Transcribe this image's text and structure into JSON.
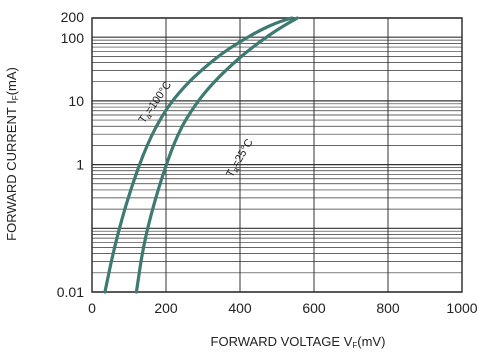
{
  "chart_data": {
    "type": "line",
    "title": "",
    "xlabel_main": "FORWARD VOLTAGE  V",
    "xlabel_sub": "F",
    "xlabel_unit": "(mV)",
    "ylabel_main": "FORWARD CURRENT  I",
    "ylabel_sub": "F",
    "ylabel_unit": "(mA)",
    "xlim": [
      0,
      1000
    ],
    "ylim": [
      0.01,
      200
    ],
    "y_scale": "log",
    "grid": true,
    "x_ticks": [
      0,
      200,
      400,
      600,
      800,
      1000
    ],
    "x_tick_labels": [
      "0",
      "200",
      "400",
      "600",
      "800",
      "1000"
    ],
    "y_ticks": [
      0.01,
      1,
      10,
      100,
      200
    ],
    "y_tick_labels": [
      "0.01",
      "1",
      "10",
      "100",
      "200"
    ],
    "line_color": "#3e7a72",
    "grid_color": "#333333",
    "series": [
      {
        "name": "T=100°C",
        "label_main": "T",
        "label_sub": "a",
        "label_rest": "=100°C",
        "x": [
          35,
          60,
          100,
          150,
          200,
          250,
          300,
          350,
          400,
          450,
          500,
          540
        ],
        "y": [
          0.01,
          0.05,
          0.35,
          2.2,
          7.5,
          17,
          32,
          55,
          85,
          125,
          170,
          200
        ]
      },
      {
        "name": "T=25°C",
        "label_main": "T",
        "label_sub": "a",
        "label_rest": "=25°C",
        "x": [
          120,
          140,
          180,
          230,
          280,
          330,
          380,
          420,
          460,
          500,
          530,
          555
        ],
        "y": [
          0.01,
          0.06,
          0.45,
          3,
          9,
          20,
          38,
          60,
          90,
          130,
          165,
          200
        ]
      }
    ]
  }
}
